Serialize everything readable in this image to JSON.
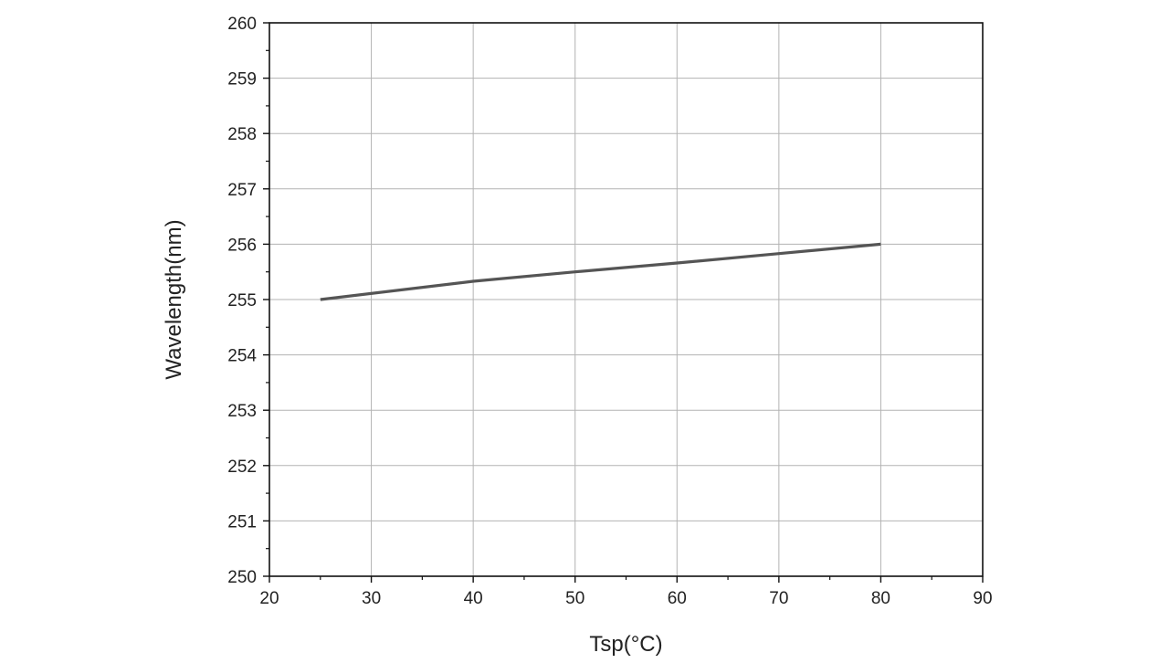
{
  "chart_data": {
    "type": "line",
    "title": "",
    "xlabel": "Tsp(°C)",
    "ylabel": "Wavelength(nm)",
    "xlim": [
      20,
      90
    ],
    "ylim": [
      250,
      260
    ],
    "x_ticks": [
      20,
      30,
      40,
      50,
      60,
      70,
      80,
      90
    ],
    "y_ticks": [
      250,
      251,
      252,
      253,
      254,
      255,
      256,
      257,
      258,
      259,
      260
    ],
    "grid": true,
    "legend": "none",
    "series": [
      {
        "x": [
          25,
          40,
          50,
          60,
          70,
          80
        ],
        "y": [
          255.0,
          255.33,
          255.5,
          255.66,
          255.83,
          256.0
        ],
        "color": "#555555"
      }
    ]
  }
}
